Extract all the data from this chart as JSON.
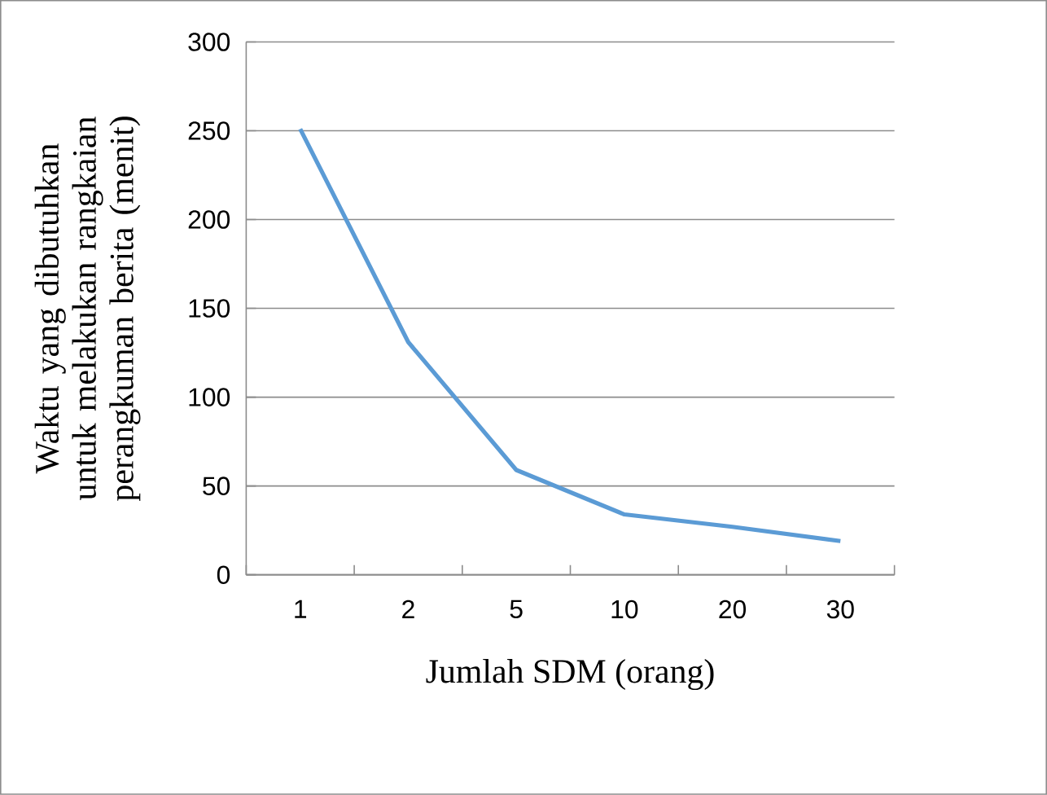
{
  "chart_data": {
    "type": "line",
    "xlabel": "Jumlah SDM (orang)",
    "ylabel": "Waktu yang dibutuhkan untuk melakukan rangkaian perangkuman berita (menit)",
    "categories": [
      "1",
      "2",
      "5",
      "10",
      "20",
      "30"
    ],
    "series": [
      {
        "color": "#5b9bd5",
        "values": [
          251,
          131,
          59,
          34,
          27,
          19
        ]
      }
    ],
    "ylim": [
      0,
      300
    ],
    "yticks": [
      0,
      50,
      100,
      150,
      200,
      250,
      300
    ],
    "grid": "y"
  }
}
